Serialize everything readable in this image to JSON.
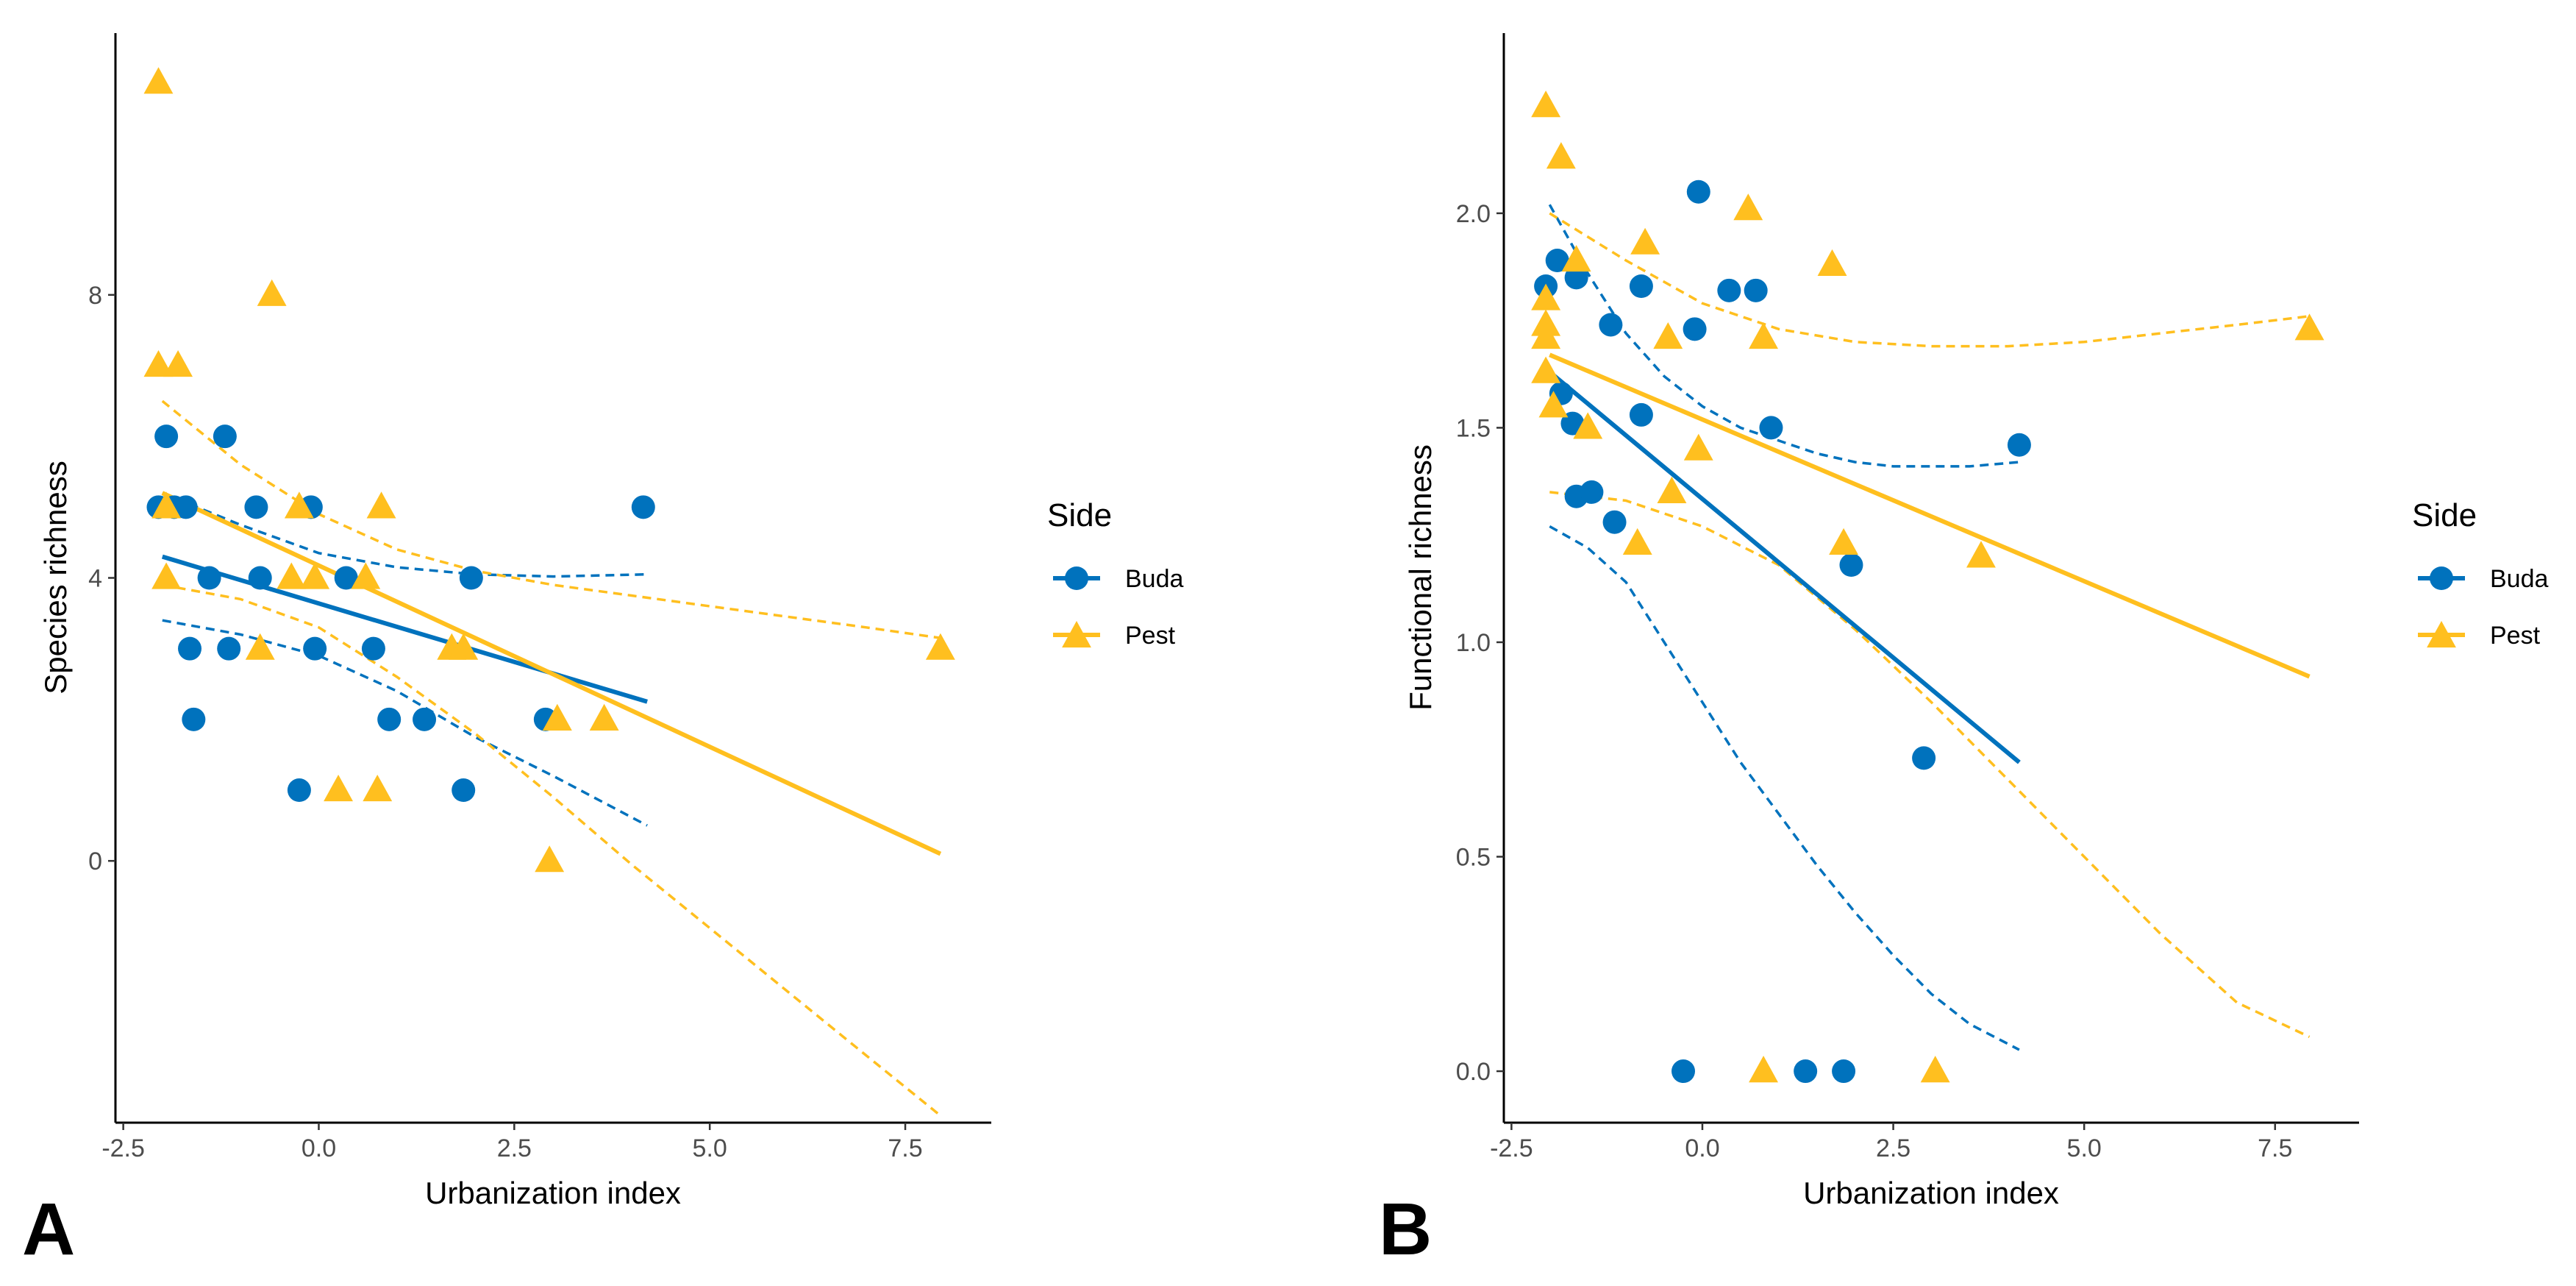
{
  "chart_data": [
    {
      "type": "scatter",
      "panel_label": "A",
      "xlabel": "Urbanization index",
      "ylabel": "Species richness",
      "xlim": [
        -2.6,
        8.6
      ],
      "ylim": [
        -3.7,
        11.7
      ],
      "xticks": [
        -2.5,
        0.0,
        2.5,
        5.0,
        7.5
      ],
      "xtick_labels": [
        "-2.5",
        "0.0",
        "2.5",
        "5.0",
        "7.5"
      ],
      "yticks": [
        0,
        4,
        8
      ],
      "ytick_labels": [
        "0",
        "4",
        "8"
      ],
      "grid": false,
      "legend_title": "Side",
      "legend_position": "right",
      "series": [
        {
          "name": "Buda",
          "color": "#0072BD",
          "marker": "circle",
          "points": [
            [
              -2.05,
              5
            ],
            [
              -1.95,
              6
            ],
            [
              -1.85,
              5
            ],
            [
              -1.7,
              5
            ],
            [
              -1.65,
              3
            ],
            [
              -1.6,
              2
            ],
            [
              -1.4,
              4
            ],
            [
              -1.2,
              6
            ],
            [
              -1.15,
              3
            ],
            [
              -0.8,
              5
            ],
            [
              -0.75,
              4
            ],
            [
              -0.25,
              1
            ],
            [
              -0.1,
              5
            ],
            [
              -0.05,
              3
            ],
            [
              0.35,
              4
            ],
            [
              0.7,
              3
            ],
            [
              0.9,
              2
            ],
            [
              1.35,
              2
            ],
            [
              1.85,
              1
            ],
            [
              1.95,
              4
            ],
            [
              2.9,
              2
            ],
            [
              4.15,
              5
            ]
          ],
          "fit": {
            "x": [
              -2.0,
              4.2
            ],
            "y": [
              4.3,
              2.25
            ]
          },
          "ci": {
            "x": [
              -2.0,
              -1.0,
              0.0,
              1.0,
              2.0,
              3.0,
              4.2
            ],
            "upper": [
              5.2,
              4.75,
              4.35,
              4.15,
              4.05,
              4.02,
              4.05
            ],
            "lower": [
              3.4,
              3.2,
              2.9,
              2.4,
              1.75,
              1.2,
              0.5
            ]
          }
        },
        {
          "name": "Pest",
          "color": "#FFBF1F",
          "marker": "triangle",
          "points": [
            [
              -2.05,
              11
            ],
            [
              -2.05,
              7
            ],
            [
              -1.95,
              4
            ],
            [
              -1.8,
              7
            ],
            [
              -1.95,
              5
            ],
            [
              -0.75,
              3
            ],
            [
              -0.6,
              8
            ],
            [
              -0.35,
              4
            ],
            [
              -0.25,
              5
            ],
            [
              -0.05,
              4
            ],
            [
              0.25,
              1
            ],
            [
              0.6,
              4
            ],
            [
              0.75,
              1
            ],
            [
              0.8,
              5
            ],
            [
              1.7,
              3
            ],
            [
              1.85,
              3
            ],
            [
              2.95,
              0
            ],
            [
              3.05,
              2
            ],
            [
              3.65,
              2
            ],
            [
              7.95,
              3
            ]
          ],
          "fit": {
            "x": [
              -2.0,
              7.95
            ],
            "y": [
              5.2,
              0.1
            ]
          },
          "ci": {
            "x": [
              -2.0,
              -1.0,
              0.0,
              1.0,
              2.0,
              3.0,
              4.0,
              5.0,
              6.0,
              7.0,
              7.95
            ],
            "upper": [
              6.5,
              5.6,
              4.9,
              4.4,
              4.1,
              3.9,
              3.75,
              3.6,
              3.45,
              3.3,
              3.15
            ],
            "lower": [
              3.9,
              3.7,
              3.3,
              2.6,
              1.8,
              0.9,
              -0.05,
              -0.95,
              -1.85,
              -2.75,
              -3.6
            ]
          }
        }
      ]
    },
    {
      "type": "scatter",
      "panel_label": "B",
      "xlabel": "Urbanization index",
      "ylabel": "Functional richness",
      "xlim": [
        -2.6,
        8.6
      ],
      "ylim": [
        -0.12,
        2.42
      ],
      "xticks": [
        -2.5,
        0.0,
        2.5,
        5.0,
        7.5
      ],
      "xtick_labels": [
        "-2.5",
        "0.0",
        "2.5",
        "5.0",
        "7.5"
      ],
      "yticks": [
        0.0,
        0.5,
        1.0,
        1.5,
        2.0
      ],
      "ytick_labels": [
        "0.0",
        "0.5",
        "1.0",
        "1.5",
        "2.0"
      ],
      "grid": false,
      "legend_title": "Side",
      "legend_position": "right",
      "series": [
        {
          "name": "Buda",
          "color": "#0072BD",
          "marker": "circle",
          "points": [
            [
              -2.05,
              1.83
            ],
            [
              -1.9,
              1.89
            ],
            [
              -1.85,
              1.58
            ],
            [
              -1.7,
              1.51
            ],
            [
              -1.65,
              1.85
            ],
            [
              -1.65,
              1.34
            ],
            [
              -1.45,
              1.35
            ],
            [
              -1.2,
              1.74
            ],
            [
              -1.15,
              1.28
            ],
            [
              -0.8,
              1.83
            ],
            [
              -0.8,
              1.53
            ],
            [
              -0.25,
              0.0
            ],
            [
              -0.05,
              2.05
            ],
            [
              -0.1,
              1.73
            ],
            [
              0.35,
              1.82
            ],
            [
              0.7,
              1.82
            ],
            [
              0.9,
              1.5
            ],
            [
              1.35,
              0.0
            ],
            [
              1.85,
              0.0
            ],
            [
              1.95,
              1.18
            ],
            [
              2.9,
              0.73
            ],
            [
              4.15,
              1.46
            ]
          ],
          "fit": {
            "x": [
              -2.0,
              4.15
            ],
            "y": [
              1.63,
              0.72
            ]
          },
          "ci": {
            "x": [
              -2.0,
              -1.5,
              -1.0,
              -0.5,
              0.0,
              0.5,
              1.0,
              1.5,
              2.0,
              2.5,
              3.0,
              3.5,
              4.15
            ],
            "upper": [
              2.02,
              1.86,
              1.72,
              1.62,
              1.55,
              1.5,
              1.47,
              1.44,
              1.42,
              1.41,
              1.41,
              1.41,
              1.42
            ],
            "lower": [
              1.27,
              1.22,
              1.14,
              1.0,
              0.86,
              0.72,
              0.6,
              0.48,
              0.37,
              0.27,
              0.18,
              0.11,
              0.05
            ]
          }
        },
        {
          "name": "Pest",
          "color": "#FFBF1F",
          "marker": "triangle",
          "points": [
            [
              -2.05,
              2.25
            ],
            [
              -2.05,
              1.8
            ],
            [
              -2.05,
              1.74
            ],
            [
              -2.05,
              1.71
            ],
            [
              -2.05,
              1.63
            ],
            [
              -1.95,
              1.55
            ],
            [
              -1.85,
              2.13
            ],
            [
              -1.65,
              1.89
            ],
            [
              -1.5,
              1.5
            ],
            [
              -0.75,
              1.93
            ],
            [
              -0.85,
              1.23
            ],
            [
              -0.45,
              1.71
            ],
            [
              -0.4,
              1.35
            ],
            [
              -0.05,
              1.45
            ],
            [
              0.6,
              2.01
            ],
            [
              0.8,
              1.71
            ],
            [
              0.8,
              0.0
            ],
            [
              1.7,
              1.88
            ],
            [
              1.85,
              1.23
            ],
            [
              3.05,
              0.0
            ],
            [
              3.65,
              1.2
            ],
            [
              7.95,
              1.73
            ]
          ],
          "fit": {
            "x": [
              -2.0,
              7.95
            ],
            "y": [
              1.67,
              0.92
            ]
          },
          "ci": {
            "x": [
              -2.0,
              -1.0,
              0.0,
              1.0,
              2.0,
              3.0,
              4.0,
              5.0,
              6.0,
              7.0,
              7.95
            ],
            "upper": [
              2.0,
              1.89,
              1.79,
              1.73,
              1.7,
              1.69,
              1.69,
              1.7,
              1.72,
              1.74,
              1.76
            ],
            "lower": [
              1.35,
              1.33,
              1.27,
              1.18,
              1.03,
              0.86,
              0.68,
              0.5,
              0.32,
              0.16,
              0.08
            ]
          }
        }
      ]
    }
  ]
}
